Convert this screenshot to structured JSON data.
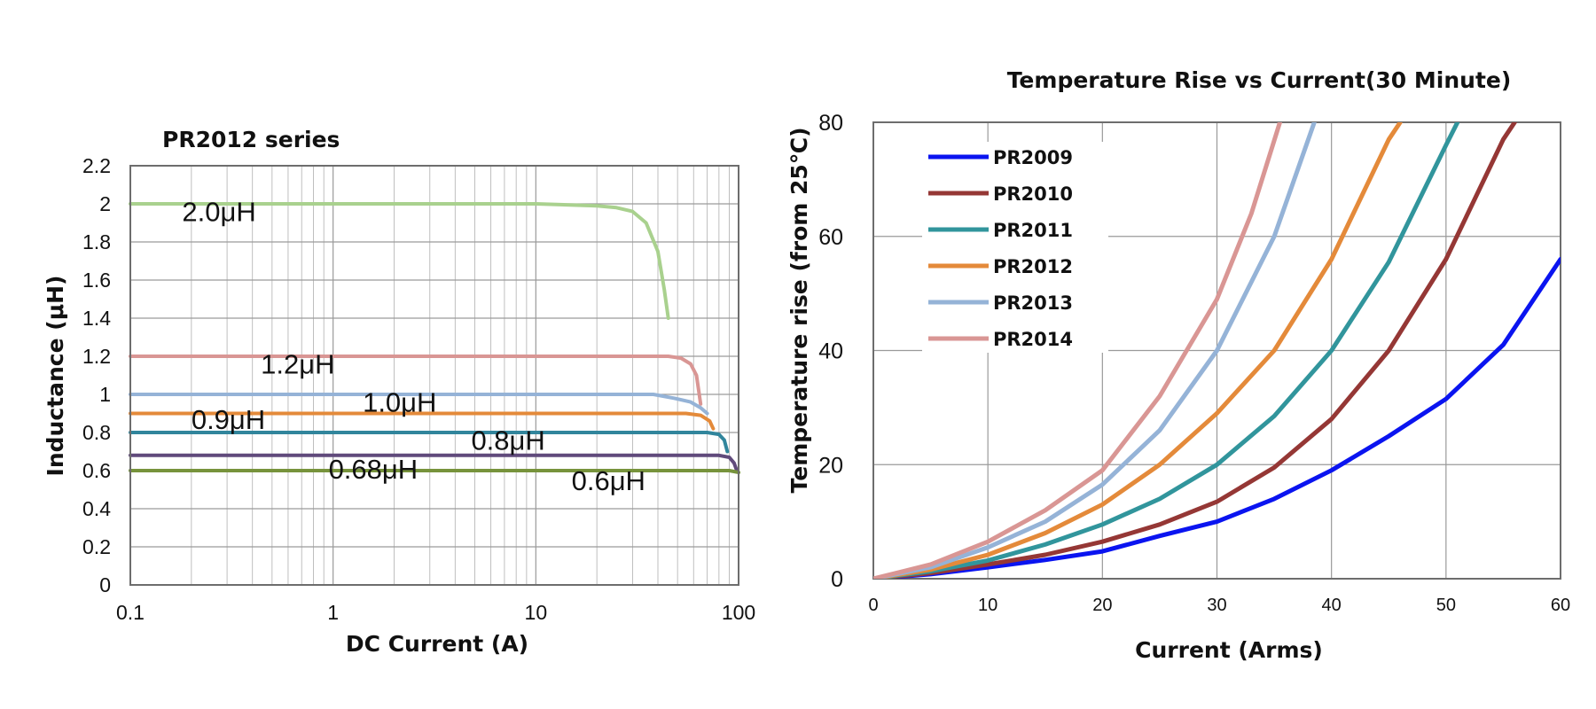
{
  "chart_data": [
    {
      "type": "line",
      "title": "PR2012 series",
      "xlabel": "DC Current (A)",
      "ylabel": "Inductance (μH)",
      "xscale": "log",
      "xlim": [
        0.1,
        100
      ],
      "ylim": [
        0,
        2.2
      ],
      "x_ticks": [
        "0.1",
        "1",
        "10",
        "100"
      ],
      "y_ticks": [
        "0",
        "0.2",
        "0.4",
        "0.6",
        "0.8",
        "1",
        "1.2",
        "1.4",
        "1.6",
        "1.8",
        "2",
        "2.2"
      ],
      "grid": true,
      "series": [
        {
          "name": "2.0μH",
          "color": "#a9d18e",
          "x": [
            0.1,
            1,
            10,
            20,
            25,
            30,
            35,
            40,
            43,
            45
          ],
          "y": [
            2.0,
            2.0,
            2.0,
            1.99,
            1.98,
            1.96,
            1.9,
            1.75,
            1.55,
            1.4
          ]
        },
        {
          "name": "1.2μH",
          "color": "#d99694",
          "x": [
            0.1,
            1,
            10,
            35,
            45,
            52,
            58,
            62,
            65
          ],
          "y": [
            1.2,
            1.2,
            1.2,
            1.2,
            1.2,
            1.19,
            1.16,
            1.1,
            0.95
          ]
        },
        {
          "name": "1.0μH",
          "color": "#95b3d7",
          "x": [
            0.1,
            1,
            10,
            30,
            38,
            48,
            58,
            65,
            70
          ],
          "y": [
            1.0,
            1.0,
            1.0,
            1.0,
            1.0,
            0.98,
            0.96,
            0.93,
            0.9
          ]
        },
        {
          "name": "0.9μH",
          "color": "#e48a3a",
          "x": [
            0.1,
            1,
            10,
            40,
            55,
            65,
            72,
            75
          ],
          "y": [
            0.9,
            0.9,
            0.9,
            0.9,
            0.9,
            0.89,
            0.86,
            0.82
          ]
        },
        {
          "name": "0.8μH",
          "color": "#31859c",
          "x": [
            0.1,
            1,
            10,
            50,
            70,
            80,
            85,
            88
          ],
          "y": [
            0.8,
            0.8,
            0.8,
            0.8,
            0.8,
            0.79,
            0.76,
            0.7
          ]
        },
        {
          "name": "0.68μH",
          "color": "#604a7b",
          "x": [
            0.1,
            1,
            10,
            60,
            80,
            90,
            95,
            98
          ],
          "y": [
            0.68,
            0.68,
            0.68,
            0.68,
            0.68,
            0.67,
            0.64,
            0.6
          ]
        },
        {
          "name": "0.6μH",
          "color": "#77933c",
          "x": [
            0.1,
            1,
            10,
            60,
            90,
            100
          ],
          "y": [
            0.6,
            0.6,
            0.6,
            0.6,
            0.6,
            0.59
          ]
        }
      ],
      "annotations": [
        {
          "text": "2.0μH",
          "x": 0.18,
          "y": 1.96
        },
        {
          "text": "1.2μH",
          "x": 0.44,
          "y": 1.16
        },
        {
          "text": "1.0μH",
          "x": 1.4,
          "y": 0.96
        },
        {
          "text": "0.9μH",
          "x": 0.2,
          "y": 0.87
        },
        {
          "text": "0.8μH",
          "x": 4.8,
          "y": 0.76
        },
        {
          "text": "0.68μH",
          "x": 0.95,
          "y": 0.61
        },
        {
          "text": "0.6μH",
          "x": 15,
          "y": 0.55
        }
      ]
    },
    {
      "type": "line",
      "title": "Temperature Rise vs Current(30 Minute)",
      "xlabel": "Current (Arms)",
      "ylabel": "Temperature rise (from 25℃)",
      "xlim": [
        0,
        60
      ],
      "ylim": [
        0,
        80
      ],
      "x_ticks": [
        "0",
        "10",
        "20",
        "30",
        "40",
        "50",
        "60"
      ],
      "y_ticks": [
        "0",
        "20",
        "40",
        "60",
        "80"
      ],
      "grid": true,
      "legend": "top-left",
      "series": [
        {
          "name": "PR2009",
          "color": "#0a14f0",
          "x": [
            0,
            5,
            10,
            15,
            20,
            25,
            30,
            35,
            40,
            45,
            50,
            55,
            60
          ],
          "y": [
            0,
            0.8,
            2,
            3.3,
            4.8,
            7.5,
            10,
            14,
            19,
            25,
            31.5,
            41,
            56
          ]
        },
        {
          "name": "PR2010",
          "color": "#953735",
          "x": [
            0,
            5,
            10,
            15,
            20,
            25,
            30,
            35,
            40,
            45,
            50,
            55,
            56
          ],
          "y": [
            0,
            1,
            2.5,
            4.2,
            6.5,
            9.5,
            13.5,
            19.5,
            28,
            40,
            56,
            77,
            80
          ]
        },
        {
          "name": "PR2011",
          "color": "#31959c",
          "x": [
            0,
            5,
            10,
            15,
            20,
            25,
            30,
            35,
            40,
            45,
            50,
            51
          ],
          "y": [
            0,
            1.3,
            3.2,
            6,
            9.5,
            14,
            20,
            28.5,
            40,
            55.5,
            76,
            80
          ]
        },
        {
          "name": "PR2012",
          "color": "#e48a3a",
          "x": [
            0,
            5,
            10,
            15,
            20,
            25,
            30,
            35,
            40,
            45,
            46
          ],
          "y": [
            0,
            1.6,
            4.2,
            8,
            13,
            20,
            29,
            40,
            56,
            77,
            80
          ]
        },
        {
          "name": "PR2013",
          "color": "#95b3d7",
          "x": [
            0,
            5,
            10,
            15,
            20,
            25,
            30,
            35,
            38.5
          ],
          "y": [
            0,
            2,
            5.5,
            10,
            16.5,
            26,
            40,
            60,
            80
          ]
        },
        {
          "name": "PR2014",
          "color": "#d99694",
          "x": [
            0,
            5,
            10,
            15,
            20,
            25,
            30,
            33,
            35.5
          ],
          "y": [
            0,
            2.5,
            6.5,
            12,
            19,
            32,
            49,
            64,
            80
          ]
        }
      ]
    }
  ]
}
